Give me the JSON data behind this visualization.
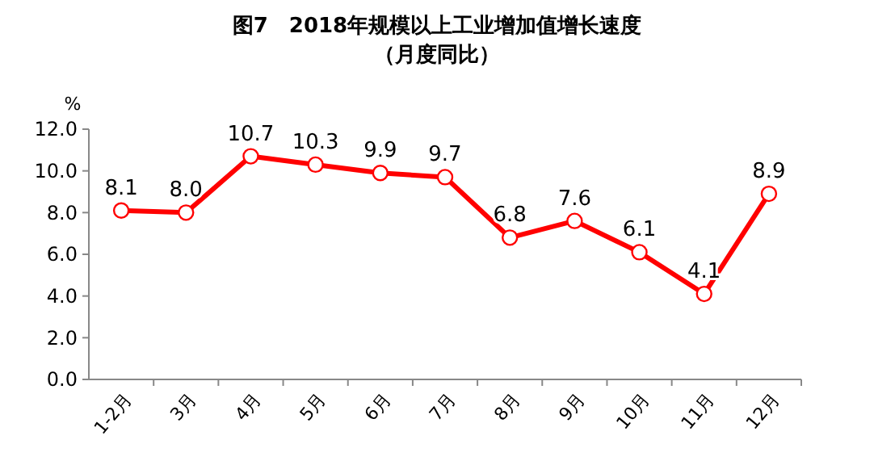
{
  "chart_data": {
    "type": "line",
    "title": "图7　2018年规模以上工业增加值增长速度",
    "subtitle": "（月度同比）",
    "ylabel": "%",
    "categories": [
      "1-2月",
      "3月",
      "4月",
      "5月",
      "6月",
      "7月",
      "8月",
      "9月",
      "10月",
      "11月",
      "12月"
    ],
    "series": [
      {
        "color": "#ff0000",
        "values": [
          8.1,
          8.0,
          10.7,
          10.3,
          9.9,
          9.7,
          6.8,
          7.6,
          6.1,
          4.1,
          8.9
        ],
        "value_labels": [
          "8.1",
          "8.0",
          "10.7",
          "10.3",
          "9.9",
          "9.7",
          "6.8",
          "7.6",
          "6.1",
          "4.1",
          "8.9"
        ]
      }
    ],
    "ylim": [
      0,
      12
    ],
    "yticks": [
      {
        "value": 0,
        "label": "0.0"
      },
      {
        "value": 2,
        "label": "2.0"
      },
      {
        "value": 4,
        "label": "4.0"
      },
      {
        "value": 6,
        "label": "6.0"
      },
      {
        "value": 8,
        "label": "8.0"
      },
      {
        "value": 10,
        "label": "10.0"
      },
      {
        "value": 12,
        "label": "12.0"
      }
    ],
    "grid": false,
    "marker": "circle",
    "line_style": "solid"
  }
}
